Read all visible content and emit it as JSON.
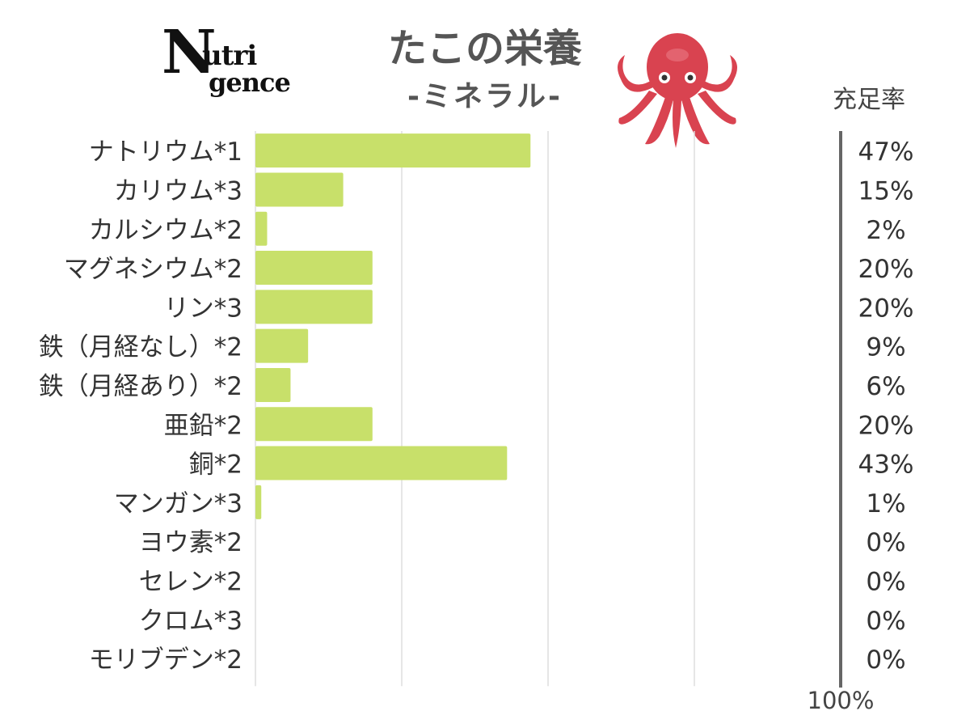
{
  "logo": {
    "big_letter": "N",
    "line1": "utri",
    "line2": "gence"
  },
  "header": {
    "title": "たこの栄養",
    "subtitle": "-ミネラル-",
    "rate_header": "充足率",
    "octopus_icon": "octopus-icon"
  },
  "colors": {
    "bar": "#c8e06a",
    "text": "#333333",
    "grid": "#dddddd",
    "divider": "#666666",
    "octopus": "#d94350"
  },
  "chart_data": {
    "type": "bar",
    "orientation": "horizontal",
    "categories": [
      "ナトリウム*1",
      "カリウム*3",
      "カルシウム*2",
      "マグネシウム*2",
      "リン*3",
      "鉄（月経なし）*2",
      "鉄（月経あり）*2",
      "亜鉛*2",
      "銅*2",
      "マンガン*3",
      "ヨウ素*2",
      "セレン*2",
      "クロム*3",
      "モリブデン*2"
    ],
    "values": [
      47,
      15,
      2,
      20,
      20,
      9,
      6,
      20,
      43,
      1,
      0,
      0,
      0,
      0
    ],
    "value_labels": [
      "47%",
      "15%",
      "2%",
      "20%",
      "20%",
      "9%",
      "6%",
      "20%",
      "43%",
      "1%",
      "0%",
      "0%",
      "0%",
      "0%"
    ],
    "xlim": [
      0,
      100
    ],
    "grid": true,
    "footer_label": "100%"
  }
}
